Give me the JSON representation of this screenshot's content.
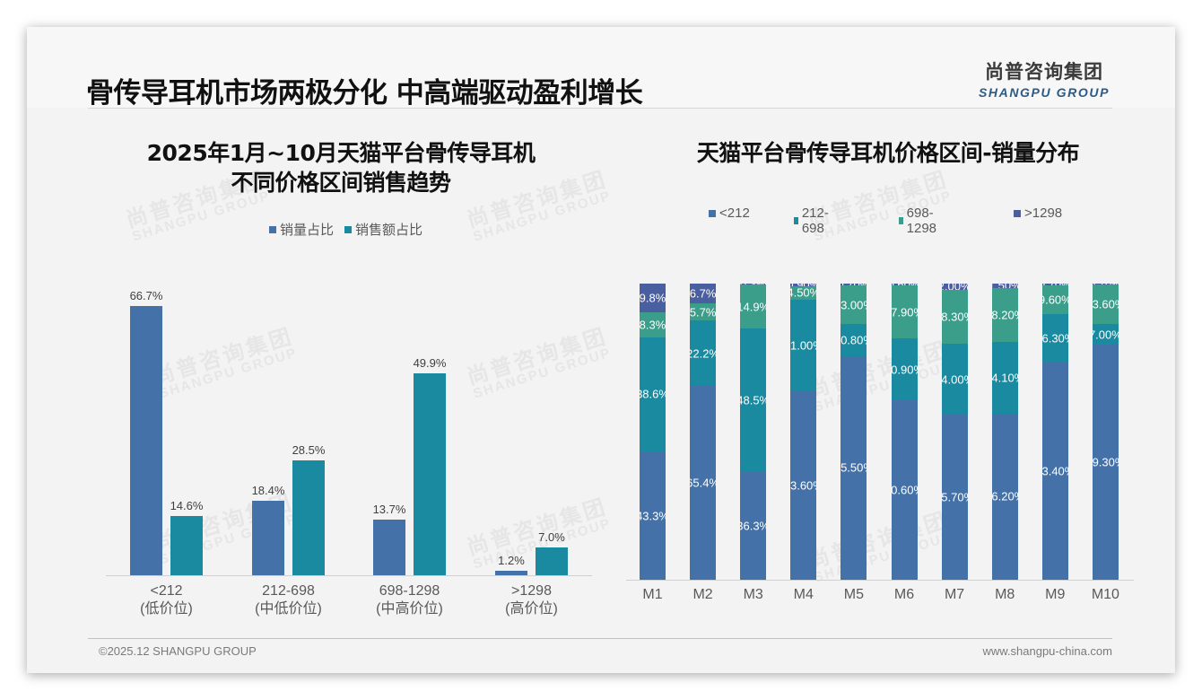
{
  "header": {
    "title": "骨传导耳机市场两极分化 中高端驱动盈利增长",
    "logo_cn": "尚普咨询集团",
    "logo_en": "SHANGPU GROUP"
  },
  "watermark": {
    "cn": "尚普咨询集团",
    "en": "SHANGPU GROUP"
  },
  "footer": {
    "copyright": "©2025.12 SHANGPU GROUP",
    "website": "www.shangpu-china.com"
  },
  "colors": {
    "sales_volume": "#4472a8",
    "sales_amount": "#1a8aa0",
    "lt212": "#4472a8",
    "r212_698": "#1a8aa0",
    "r698_1298": "#3a9e8a",
    "gt1298": "#4a5fa0"
  },
  "chart_data": [
    {
      "type": "bar",
      "title": "2025年1月~10月天猫平台骨传导耳机不同价格区间销售趋势",
      "title_lines": [
        "2025年1月~10月天猫平台骨传导耳机",
        "不同价格区间销售趋势"
      ],
      "categories": [
        "<212",
        "212-698",
        "698-1298",
        ">1298"
      ],
      "category_sublabels": [
        "(低价位)",
        "(中低价位)",
        "(中高价位)",
        "(高价位)"
      ],
      "series": [
        {
          "name": "销量占比",
          "values": [
            66.7,
            18.4,
            13.7,
            1.2
          ],
          "labels": [
            "66.7%",
            "18.4%",
            "13.7%",
            "1.2%"
          ]
        },
        {
          "name": "销售额占比",
          "values": [
            14.6,
            28.5,
            49.9,
            7.0
          ],
          "labels": [
            "14.6%",
            "28.5%",
            "49.9%",
            "7.0%"
          ]
        }
      ],
      "xlabel": "",
      "ylabel": "",
      "ylim": [
        0,
        70
      ],
      "grid": false,
      "legend_position": "top"
    },
    {
      "type": "bar",
      "stacked": true,
      "title": "天猫平台骨传导耳机价格区间-销量分布",
      "categories": [
        "M1",
        "M2",
        "M3",
        "M4",
        "M5",
        "M6",
        "M7",
        "M8",
        "M9",
        "M10"
      ],
      "series": [
        {
          "name": "<212",
          "values": [
            43.3,
            65.4,
            36.3,
            63.6,
            75.5,
            60.6,
            55.7,
            56.2,
            73.4,
            79.3
          ],
          "labels": [
            "43.3%",
            "65.4%",
            "36.3%",
            "63.60%",
            "75.50%",
            "60.60%",
            "55.70%",
            "56.20%",
            "73.40%",
            "79.30%"
          ]
        },
        {
          "name": "212-698",
          "values": [
            38.6,
            22.2,
            48.5,
            31.0,
            10.8,
            20.9,
            24.0,
            24.1,
            16.3,
            7.0
          ],
          "labels": [
            "38.6%",
            "22.2%",
            "48.5%",
            "31.00%",
            "10.80%",
            "20.90%",
            "24.00%",
            "24.10%",
            "16.30%",
            "7.00%"
          ]
        },
        {
          "name": "698-1298",
          "values": [
            8.3,
            5.7,
            14.9,
            4.5,
            13.0,
            17.9,
            18.3,
            18.2,
            9.6,
            13.6
          ],
          "labels": [
            "8.3%",
            "5.7%",
            "14.9%",
            "4.50%",
            "13.00%",
            "17.90%",
            "18.30%",
            "18.20%",
            "9.60%",
            "13.60%"
          ]
        },
        {
          "name": ">1298",
          "values": [
            9.8,
            6.7,
            0.3,
            0.9,
            0.7,
            0.6,
            2.0,
            1.5,
            0.7,
            0.1
          ],
          "labels": [
            "9.8%",
            "6.7%",
            "0.3%",
            "0.90%",
            "0.70%",
            "0.60%",
            "2.00%",
            "1.50%",
            "0.70%",
            "0.10%"
          ]
        }
      ],
      "xlabel": "",
      "ylabel": "",
      "ylim": [
        0,
        100
      ],
      "grid": false,
      "legend_position": "top"
    }
  ]
}
